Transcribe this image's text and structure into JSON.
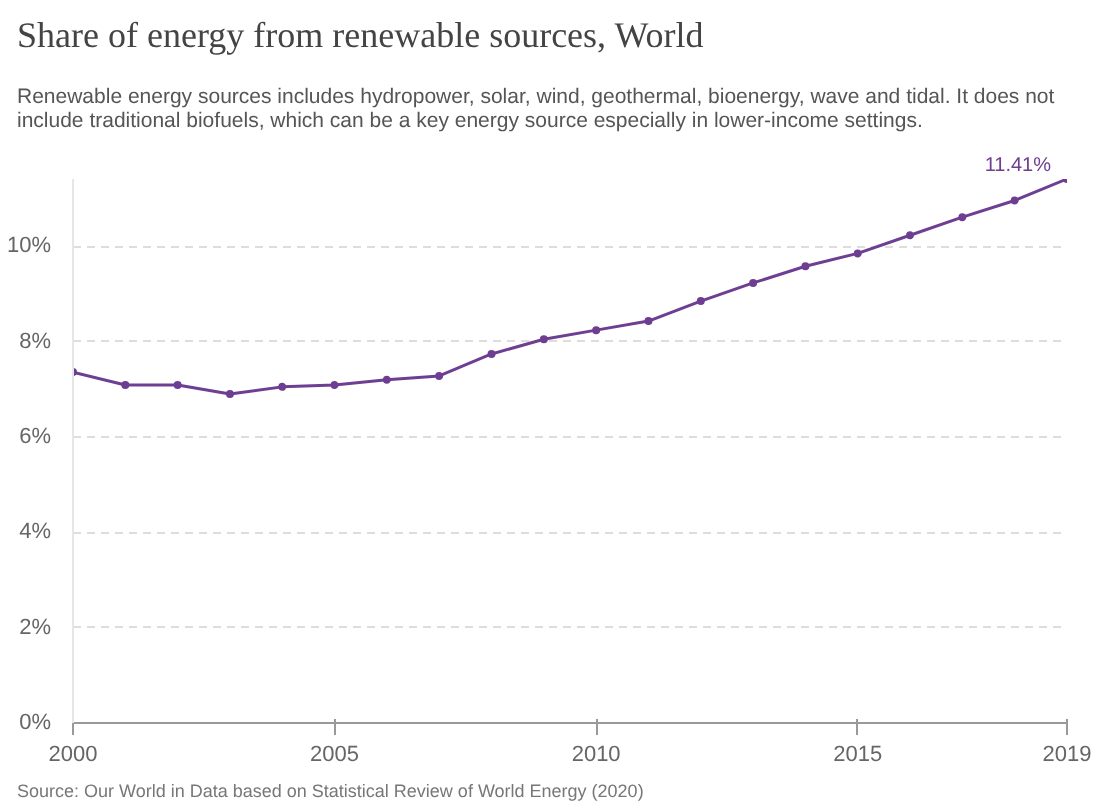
{
  "chart_data": {
    "type": "line",
    "title": "Share of energy from renewable sources, World",
    "subtitle": "Renewable energy sources includes hydropower, solar, wind, geothermal, bioenergy, wave and tidal. It does not\ninclude traditional biofuels, which can be a key energy source especially in lower-income settings.",
    "x": [
      2000,
      2001,
      2002,
      2003,
      2004,
      2005,
      2006,
      2007,
      2008,
      2009,
      2010,
      2011,
      2012,
      2013,
      2014,
      2015,
      2016,
      2017,
      2018,
      2019
    ],
    "series": [
      {
        "color": "#6d3e91",
        "values": [
          7.36,
          7.09,
          7.09,
          6.9,
          7.05,
          7.09,
          7.2,
          7.28,
          7.74,
          8.05,
          8.24,
          8.43,
          8.85,
          9.23,
          9.58,
          9.85,
          10.23,
          10.61,
          10.96,
          11.41
        ],
        "value_labels": [
          null,
          null,
          null,
          null,
          null,
          null,
          null,
          null,
          null,
          null,
          null,
          null,
          null,
          null,
          null,
          null,
          null,
          null,
          null,
          "11.41%"
        ]
      }
    ],
    "xlim": [
      2000,
      2019
    ],
    "xticks": [
      2000,
      2005,
      2010,
      2015,
      2019
    ],
    "ylim": [
      0,
      11.41
    ],
    "yticks": [
      {
        "value": 0,
        "label": "0%"
      },
      {
        "value": 2,
        "label": "2%"
      },
      {
        "value": 4,
        "label": "4%"
      },
      {
        "value": 6,
        "label": "6%"
      },
      {
        "value": 8,
        "label": "8%"
      },
      {
        "value": 10,
        "label": "10%"
      }
    ],
    "grid": "y",
    "marker": "circle",
    "line_style": "solid",
    "annotations": [
      "Source: Our World in Data based on Statistical Review of World Energy (2020)"
    ]
  }
}
